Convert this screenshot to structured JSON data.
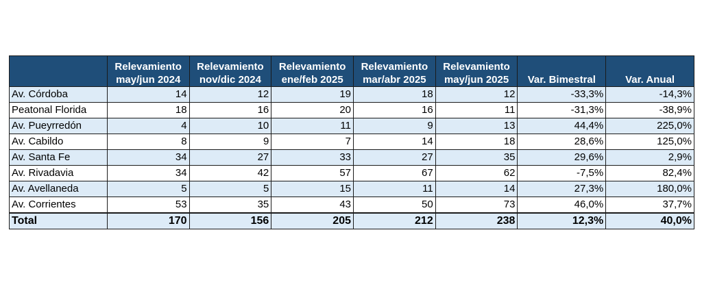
{
  "table": {
    "headers": [
      {
        "line1": "",
        "line2": ""
      },
      {
        "line1": "Relevamiento",
        "line2": "may/jun 2024"
      },
      {
        "line1": "Relevamiento",
        "line2": "nov/dic 2024"
      },
      {
        "line1": "Relevamiento",
        "line2": "ene/feb 2025"
      },
      {
        "line1": "Relevamiento",
        "line2": "mar/abr 2025"
      },
      {
        "line1": "Relevamiento",
        "line2": "may/jun 2025"
      },
      {
        "line1": "",
        "line2": "Var. Bimestral"
      },
      {
        "line1": "",
        "line2": "Var. Anual"
      }
    ],
    "rows": [
      {
        "name": "Av. Córdoba",
        "v1": "14",
        "v2": "12",
        "v3": "19",
        "v4": "18",
        "v5": "12",
        "bim": "-33,3%",
        "anual": "-14,3%"
      },
      {
        "name": "Peatonal Florida",
        "v1": "18",
        "v2": "16",
        "v3": "20",
        "v4": "16",
        "v5": "11",
        "bim": "-31,3%",
        "anual": "-38,9%"
      },
      {
        "name": "Av. Pueyrredón",
        "v1": "4",
        "v2": "10",
        "v3": "11",
        "v4": "9",
        "v5": "13",
        "bim": "44,4%",
        "anual": "225,0%"
      },
      {
        "name": "Av. Cabildo",
        "v1": "8",
        "v2": "9",
        "v3": "7",
        "v4": "14",
        "v5": "18",
        "bim": "28,6%",
        "anual": "125,0%"
      },
      {
        "name": "Av. Santa Fe",
        "v1": "34",
        "v2": "27",
        "v3": "33",
        "v4": "27",
        "v5": "35",
        "bim": "29,6%",
        "anual": "2,9%"
      },
      {
        "name": "Av. Rivadavia",
        "v1": "34",
        "v2": "42",
        "v3": "57",
        "v4": "67",
        "v5": "62",
        "bim": "-7,5%",
        "anual": "82,4%"
      },
      {
        "name": "Av. Avellaneda",
        "v1": "5",
        "v2": "5",
        "v3": "15",
        "v4": "11",
        "v5": "14",
        "bim": "27,3%",
        "anual": "180,0%"
      },
      {
        "name": "Av. Corrientes",
        "v1": "53",
        "v2": "35",
        "v3": "43",
        "v4": "50",
        "v5": "73",
        "bim": "46,0%",
        "anual": "37,7%"
      }
    ],
    "total": {
      "name": "Total",
      "v1": "170",
      "v2": "156",
      "v3": "205",
      "v4": "212",
      "v5": "238",
      "bim": "12,3%",
      "anual": "40,0%"
    }
  },
  "colors": {
    "header_bg": "#1f4e79",
    "header_text": "#ffffff",
    "row_shade": "#ddebf7",
    "border": "#1a1a1a"
  }
}
